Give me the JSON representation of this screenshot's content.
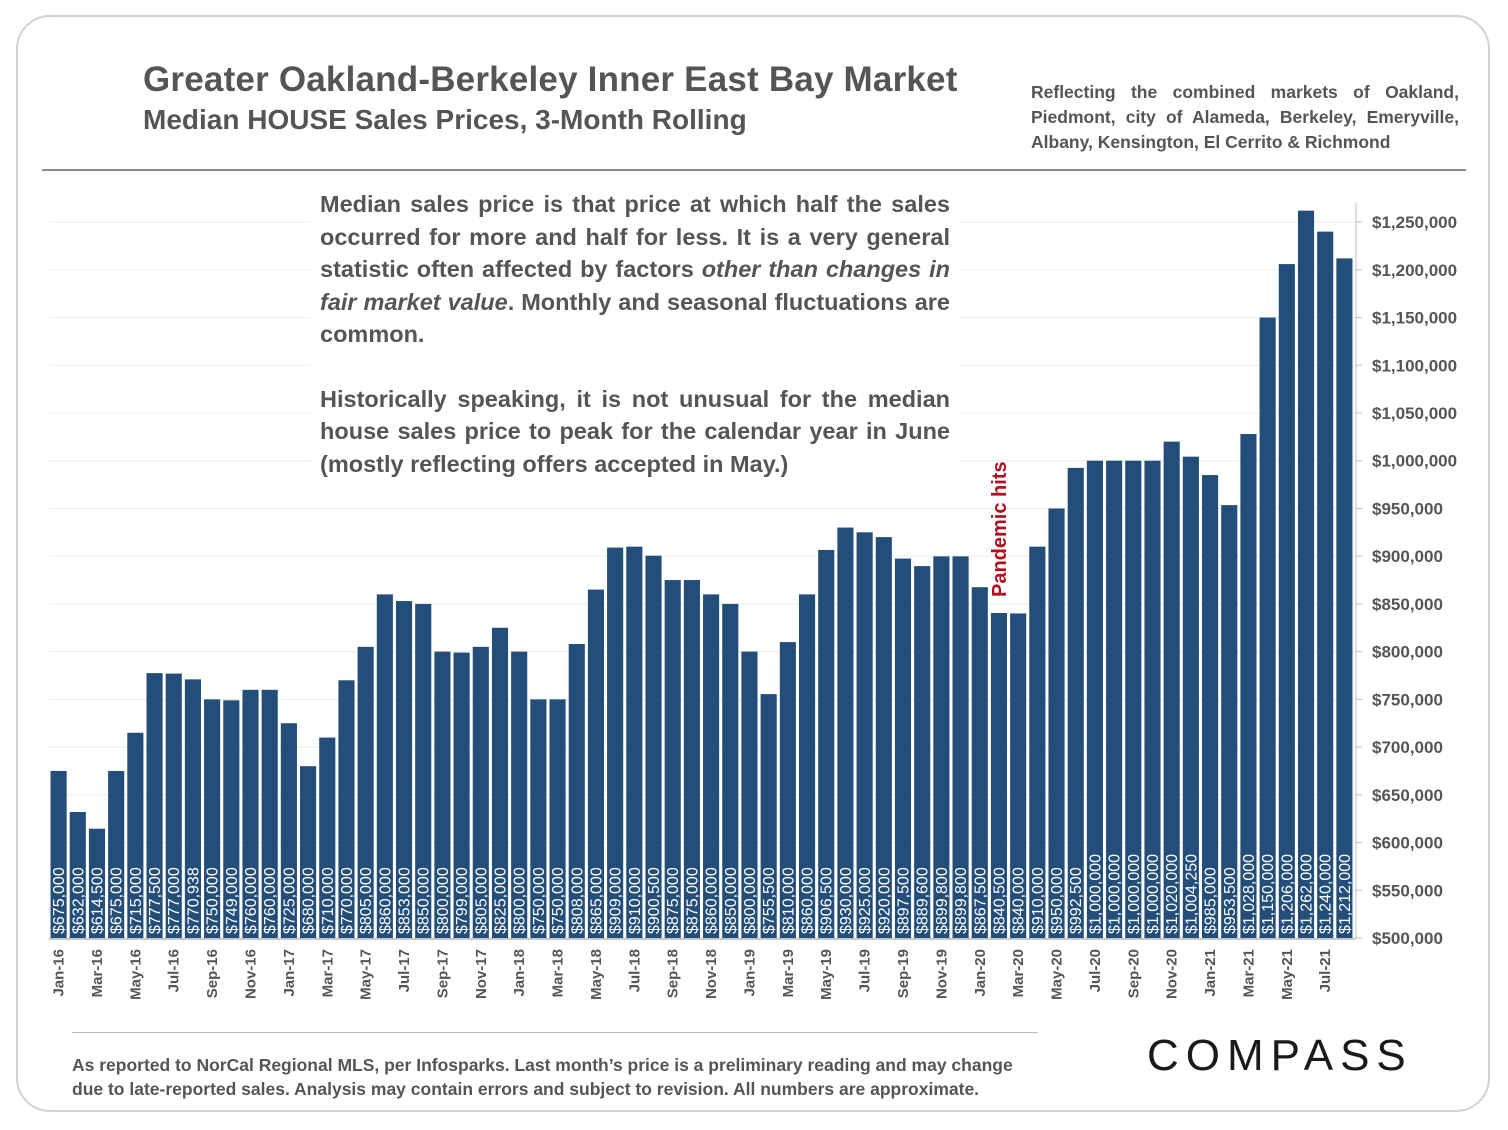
{
  "header": {
    "title": "Greater Oakland-Berkeley Inner East Bay Market",
    "subtitle": "Median HOUSE Sales Prices, 3-Month Rolling",
    "note": "Reflecting the combined markets of Oakland, Piedmont, city of Alameda, Berkeley, Emeryville, Albany, Kensington, El Cerrito & Richmond"
  },
  "description": {
    "p1_a": "Median sales price is that price at which half the sales occurred for more and half for less. It is a very general statistic often affected by factors ",
    "p1_em": "other than changes in fair market value",
    "p1_b": ". Monthly and seasonal fluctuations are common.",
    "p2": "Historically speaking, it is not  unusual for the median house sales price to peak for the calendar year in June (mostly reflecting offers accepted in May.)"
  },
  "footer": {
    "line1": "As reported to NorCal Regional MLS, per Infosparks. Last month’s price is a preliminary reading and may change",
    "line2": "due to late-reported sales. Analysis may contain errors and subject to revision. All numbers are approximate."
  },
  "brand": {
    "logo": "COMPASS"
  },
  "colors": {
    "bar": "#234e7a",
    "annotation": "#b01020",
    "text": "#555555"
  },
  "chart_data": {
    "type": "bar",
    "categories": [
      "Jan-16",
      "Feb-16",
      "Mar-16",
      "Apr-16",
      "May-16",
      "Jun-16",
      "Jul-16",
      "Aug-16",
      "Sep-16",
      "Oct-16",
      "Nov-16",
      "Dec-16",
      "Jan-17",
      "Feb-17",
      "Mar-17",
      "Apr-17",
      "May-17",
      "Jun-17",
      "Jul-17",
      "Aug-17",
      "Sep-17",
      "Oct-17",
      "Nov-17",
      "Dec-17",
      "Jan-18",
      "Feb-18",
      "Mar-18",
      "Apr-18",
      "May-18",
      "Jun-18",
      "Jul-18",
      "Aug-18",
      "Sep-18",
      "Oct-18",
      "Nov-18",
      "Dec-18",
      "Jan-19",
      "Feb-19",
      "Mar-19",
      "Apr-19",
      "May-19",
      "Jun-19",
      "Jul-19",
      "Aug-19",
      "Sep-19",
      "Oct-19",
      "Nov-19",
      "Dec-19",
      "Jan-20",
      "Feb-20",
      "Mar-20",
      "Apr-20",
      "May-20",
      "Jun-20",
      "Jul-20",
      "Aug-20",
      "Sep-20",
      "Oct-20",
      "Nov-20",
      "Dec-20",
      "Jan-21",
      "Feb-21",
      "Mar-21",
      "Apr-21",
      "May-21",
      "Jun-21",
      "Jul-21",
      "Aug-21"
    ],
    "x_tick_labels": [
      "Jan-16",
      "Mar-16",
      "May-16",
      "Jul-16",
      "Sep-16",
      "Nov-16",
      "Jan-17",
      "Mar-17",
      "May-17",
      "Jul-17",
      "Sep-17",
      "Nov-17",
      "Jan-18",
      "Mar-18",
      "May-18",
      "Jul-18",
      "Sep-18",
      "Nov-18",
      "Jan-19",
      "Mar-19",
      "May-19",
      "Jul-19",
      "Sep-19",
      "Nov-19",
      "Jan-20",
      "Mar-20",
      "May-20",
      "Jul-20",
      "Sep-20",
      "Nov-20",
      "Jan-21",
      "Mar-21",
      "May-21",
      "Jul-21"
    ],
    "values": [
      675000,
      632000,
      614500,
      675000,
      715000,
      777500,
      777000,
      770938,
      750000,
      749000,
      760000,
      760000,
      725000,
      680000,
      710000,
      770000,
      805000,
      860000,
      853000,
      850000,
      800000,
      799000,
      805000,
      825000,
      800000,
      750000,
      750000,
      808000,
      865000,
      909000,
      910000,
      900500,
      875000,
      875000,
      860000,
      850000,
      800000,
      755500,
      810000,
      860000,
      906500,
      930000,
      925000,
      920000,
      897500,
      889600,
      899800,
      899800,
      867500,
      840500,
      840000,
      910000,
      950000,
      992500,
      1000000,
      1000000,
      1000000,
      1000000,
      1020000,
      1004250,
      985000,
      953500,
      1028000,
      1150000,
      1206000,
      1262000,
      1240000,
      1212000
    ],
    "data_labels": [
      "$675,000",
      "$632,000",
      "$614,500",
      "$675,000",
      "$715,000",
      "$777,500",
      "$777,000",
      "$770,938",
      "$750,000",
      "$749,000",
      "$760,000",
      "$760,000",
      "$725,000",
      "$680,000",
      "$710,000",
      "$770,000",
      "$805,000",
      "$860,000",
      "$853,000",
      "$850,000",
      "$800,000",
      "$799,000",
      "$805,000",
      "$825,000",
      "$800,000",
      "$750,000",
      "$750,000",
      "$808,000",
      "$865,000",
      "$909,000",
      "$910,000",
      "$900,500",
      "$875,000",
      "$875,000",
      "$860,000",
      "$850,000",
      "$800,000",
      "$755,500",
      "$810,000",
      "$860,000",
      "$906,500",
      "$930,000",
      "$925,000",
      "$920,000",
      "$897,500",
      "$889,600",
      "$899,800",
      "$899,800",
      "$867,500",
      "$840,500",
      "$840,000",
      "$910,000",
      "$950,000",
      "$992,500",
      "$1,000,000",
      "$1,000,000",
      "$1,000,000",
      "$1,000,000",
      "$1,020,000",
      "$1,004,250",
      "$985,000",
      "$953,500",
      "$1,028,000",
      "$1,150,000",
      "$1,206,000",
      "$1,262,000",
      "$1,240,000",
      "$1,212,000"
    ],
    "ylim": [
      500000,
      1270000
    ],
    "y_tick_values": [
      500000,
      550000,
      600000,
      650000,
      700000,
      750000,
      800000,
      850000,
      900000,
      950000,
      1000000,
      1050000,
      1100000,
      1150000,
      1200000,
      1250000
    ],
    "y_tick_labels": [
      "$500,000",
      "$550,000",
      "$600,000",
      "$650,000",
      "$700,000",
      "$750,000",
      "$800,000",
      "$850,000",
      "$900,000",
      "$950,000",
      "$1,000,000",
      "$1,050,000",
      "$1,100,000",
      "$1,150,000",
      "$1,200,000",
      "$1,250,000"
    ],
    "y_axis_side": "right",
    "grid": true,
    "annotation": {
      "text": "Pandemic hits",
      "category": "Feb-20"
    }
  }
}
